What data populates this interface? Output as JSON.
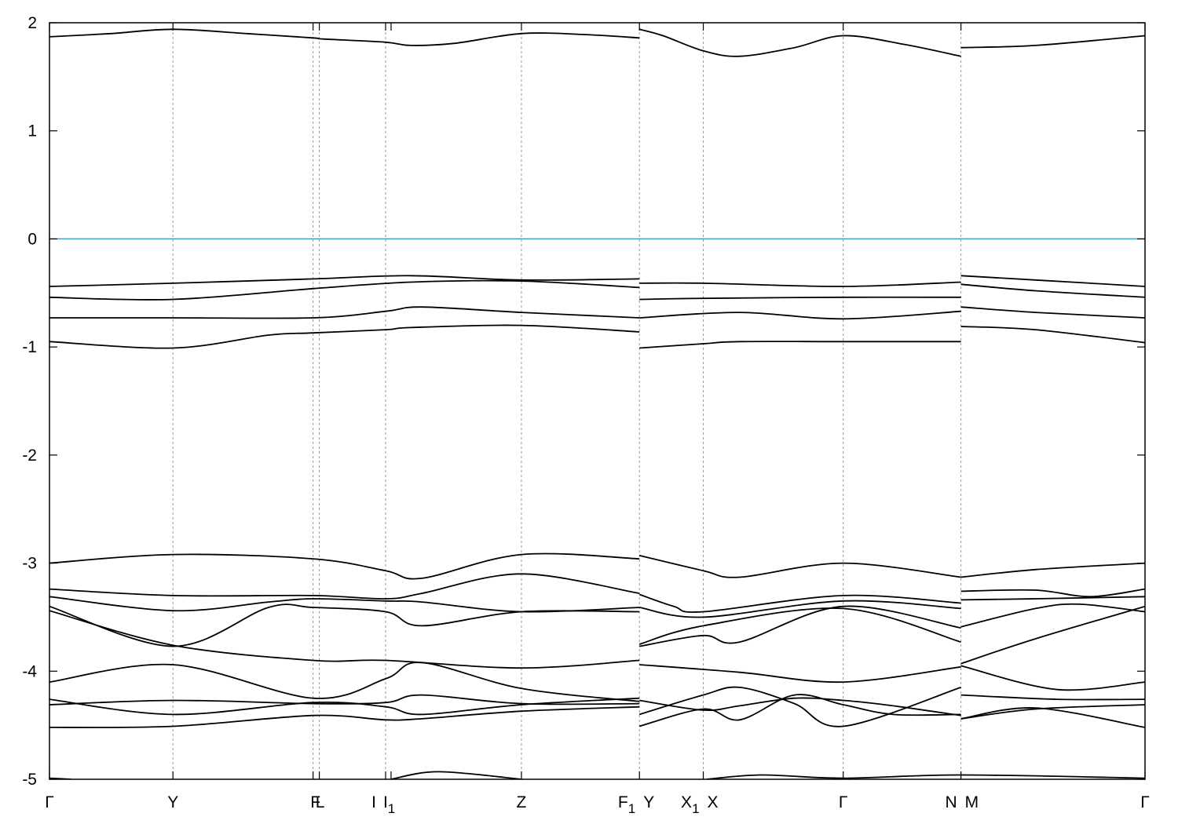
{
  "chart_data": {
    "type": "line",
    "title": "",
    "xlabel": "",
    "ylabel": "",
    "ylim": [
      -5,
      2
    ],
    "xlim": [
      0,
      1
    ],
    "yticks": [
      -5,
      -4,
      -3,
      -2,
      -1,
      0,
      1,
      2
    ],
    "ytick_labels": [
      "-5",
      "-4",
      "-3",
      "-2",
      "-1",
      "0",
      "1",
      "2"
    ],
    "fermi_level": 0,
    "fermi_color": "#40a0c0",
    "band_color": "#000000",
    "grid": "vertical dashed at high-symmetry points",
    "kpoints": [
      {
        "x": 0.0,
        "label": "Γ",
        "sub": ""
      },
      {
        "x": 0.1127,
        "label": "Y",
        "sub": ""
      },
      {
        "x": 0.2406,
        "label": "F",
        "sub": ""
      },
      {
        "x": 0.2463,
        "label": "L",
        "sub": ""
      },
      {
        "x": 0.3068,
        "label": "I",
        "sub": ""
      },
      {
        "x": 0.3118,
        "label": "I",
        "sub": "1"
      },
      {
        "x": 0.4308,
        "label": "Z",
        "sub": ""
      },
      {
        "x": 0.5385,
        "label": "F",
        "sub": "1"
      },
      {
        "x": 0.5385,
        "label": "Y",
        "sub": ""
      },
      {
        "x": 0.5968,
        "label": "X",
        "sub": "1"
      },
      {
        "x": 0.5968,
        "label": "X",
        "sub": ""
      },
      {
        "x": 0.7245,
        "label": "Γ",
        "sub": ""
      },
      {
        "x": 0.832,
        "label": "N",
        "sub": ""
      },
      {
        "x": 0.832,
        "label": "M",
        "sub": ""
      },
      {
        "x": 1.0,
        "label": "Γ",
        "sub": ""
      }
    ],
    "grid_x": [
      0.1127,
      0.2406,
      0.2463,
      0.3068,
      0.4308,
      0.5385,
      0.5968,
      0.7245,
      0.832
    ],
    "series": [
      {
        "segments": [
          [
            [
              0,
              1.87
            ],
            [
              0.056,
              1.9
            ],
            [
              0.1127,
              1.94
            ],
            [
              0.18,
              1.9
            ],
            [
              0.2406,
              1.86
            ],
            [
              0.25,
              1.85
            ],
            [
              0.3068,
              1.82
            ],
            [
              0.33,
              1.79
            ],
            [
              0.37,
              1.81
            ],
            [
              0.4308,
              1.9
            ],
            [
              0.49,
              1.89
            ],
            [
              0.5385,
              1.86
            ]
          ],
          [
            [
              0.5385,
              1.94
            ],
            [
              0.56,
              1.88
            ],
            [
              0.5968,
              1.74
            ],
            [
              0.63,
              1.69
            ],
            [
              0.68,
              1.77
            ],
            [
              0.7245,
              1.88
            ],
            [
              0.78,
              1.8
            ],
            [
              0.832,
              1.69
            ]
          ],
          [
            [
              0.832,
              1.77
            ],
            [
              0.9,
              1.79
            ],
            [
              1.0,
              1.88
            ]
          ]
        ]
      },
      {
        "segments": [
          [
            [
              0,
              -0.44
            ],
            [
              0.1127,
              -0.41
            ],
            [
              0.2406,
              -0.37
            ],
            [
              0.33,
              -0.34
            ],
            [
              0.4308,
              -0.38
            ],
            [
              0.5385,
              -0.37
            ]
          ],
          [
            [
              0.5385,
              -0.41
            ],
            [
              0.5968,
              -0.41
            ],
            [
              0.7245,
              -0.44
            ],
            [
              0.832,
              -0.4
            ]
          ],
          [
            [
              0.832,
              -0.34
            ],
            [
              0.9,
              -0.38
            ],
            [
              1.0,
              -0.44
            ]
          ]
        ]
      },
      {
        "segments": [
          [
            [
              0,
              -0.54
            ],
            [
              0.1127,
              -0.56
            ],
            [
              0.2406,
              -0.46
            ],
            [
              0.33,
              -0.4
            ],
            [
              0.4308,
              -0.39
            ],
            [
              0.5385,
              -0.45
            ]
          ],
          [
            [
              0.5385,
              -0.56
            ],
            [
              0.5968,
              -0.55
            ],
            [
              0.7245,
              -0.54
            ],
            [
              0.832,
              -0.54
            ]
          ],
          [
            [
              0.832,
              -0.42
            ],
            [
              0.9,
              -0.48
            ],
            [
              1.0,
              -0.54
            ]
          ]
        ]
      },
      {
        "segments": [
          [
            [
              0,
              -0.73
            ],
            [
              0.1127,
              -0.73
            ],
            [
              0.2406,
              -0.73
            ],
            [
              0.3068,
              -0.67
            ],
            [
              0.34,
              -0.63
            ],
            [
              0.4308,
              -0.68
            ],
            [
              0.5385,
              -0.73
            ]
          ],
          [
            [
              0.5385,
              -0.73
            ],
            [
              0.63,
              -0.68
            ],
            [
              0.7245,
              -0.74
            ],
            [
              0.832,
              -0.67
            ]
          ],
          [
            [
              0.832,
              -0.63
            ],
            [
              0.9,
              -0.68
            ],
            [
              1.0,
              -0.73
            ]
          ]
        ]
      },
      {
        "segments": [
          [
            [
              0,
              -0.95
            ],
            [
              0.1127,
              -1.01
            ],
            [
              0.2,
              -0.89
            ],
            [
              0.2406,
              -0.87
            ],
            [
              0.3068,
              -0.84
            ],
            [
              0.33,
              -0.82
            ],
            [
              0.4308,
              -0.8
            ],
            [
              0.5385,
              -0.86
            ]
          ],
          [
            [
              0.5385,
              -1.01
            ],
            [
              0.5968,
              -0.97
            ],
            [
              0.63,
              -0.95
            ],
            [
              0.7245,
              -0.95
            ],
            [
              0.832,
              -0.95
            ]
          ],
          [
            [
              0.832,
              -0.81
            ],
            [
              0.9,
              -0.84
            ],
            [
              1.0,
              -0.96
            ]
          ]
        ]
      },
      {
        "segments": [
          [
            [
              0,
              -3.0
            ],
            [
              0.1127,
              -2.92
            ],
            [
              0.2406,
              -2.96
            ],
            [
              0.3068,
              -3.07
            ],
            [
              0.34,
              -3.14
            ],
            [
              0.4308,
              -2.92
            ],
            [
              0.5385,
              -2.96
            ]
          ],
          [
            [
              0.5385,
              -2.93
            ],
            [
              0.5968,
              -3.07
            ],
            [
              0.63,
              -3.13
            ],
            [
              0.7245,
              -3.0
            ],
            [
              0.832,
              -3.13
            ]
          ],
          [
            [
              0.832,
              -3.13
            ],
            [
              0.9,
              -3.06
            ],
            [
              1.0,
              -3.0
            ]
          ]
        ]
      },
      {
        "segments": [
          [
            [
              0,
              -3.24
            ],
            [
              0.1127,
              -3.3
            ],
            [
              0.2406,
              -3.3
            ],
            [
              0.3068,
              -3.33
            ],
            [
              0.34,
              -3.28
            ],
            [
              0.4308,
              -3.1
            ],
            [
              0.5385,
              -3.28
            ]
          ],
          [
            [
              0.5385,
              -3.29
            ],
            [
              0.57,
              -3.4
            ],
            [
              0.5968,
              -3.45
            ],
            [
              0.7245,
              -3.3
            ],
            [
              0.832,
              -3.37
            ]
          ],
          [
            [
              0.832,
              -3.26
            ],
            [
              0.9,
              -3.25
            ],
            [
              0.95,
              -3.31
            ],
            [
              1.0,
              -3.24
            ]
          ]
        ]
      },
      {
        "segments": [
          [
            [
              0,
              -3.31
            ],
            [
              0.1127,
              -3.44
            ],
            [
              0.2,
              -3.36
            ],
            [
              0.2406,
              -3.33
            ],
            [
              0.3068,
              -3.35
            ],
            [
              0.34,
              -3.36
            ],
            [
              0.4308,
              -3.45
            ],
            [
              0.5385,
              -3.41
            ]
          ],
          [
            [
              0.5385,
              -3.41
            ],
            [
              0.5968,
              -3.5
            ],
            [
              0.7245,
              -3.35
            ],
            [
              0.832,
              -3.42
            ]
          ],
          [
            [
              0.832,
              -3.34
            ],
            [
              0.9,
              -3.33
            ],
            [
              1.0,
              -3.31
            ]
          ]
        ]
      },
      {
        "segments": [
          [
            [
              0,
              -3.4
            ],
            [
              0.1127,
              -3.77
            ],
            [
              0.2,
              -3.41
            ],
            [
              0.2406,
              -3.41
            ],
            [
              0.3068,
              -3.45
            ],
            [
              0.34,
              -3.58
            ],
            [
              0.4308,
              -3.45
            ],
            [
              0.5385,
              -3.45
            ]
          ],
          [
            [
              0.5385,
              -3.77
            ],
            [
              0.5968,
              -3.67
            ],
            [
              0.63,
              -3.73
            ],
            [
              0.7245,
              -3.4
            ],
            [
              0.832,
              -3.6
            ]
          ],
          [
            [
              0.832,
              -3.59
            ],
            [
              0.9,
              -3.42
            ],
            [
              0.94,
              -3.38
            ],
            [
              1.0,
              -3.45
            ]
          ]
        ]
      },
      {
        "segments": [
          [
            [
              0,
              -3.44
            ],
            [
              0.1127,
              -3.76
            ],
            [
              0.2406,
              -3.9
            ],
            [
              0.3068,
              -3.9
            ],
            [
              0.4308,
              -3.97
            ],
            [
              0.5385,
              -3.9
            ]
          ],
          [
            [
              0.5385,
              -3.75
            ],
            [
              0.5968,
              -3.58
            ],
            [
              0.7245,
              -3.42
            ],
            [
              0.832,
              -3.73
            ]
          ],
          [
            [
              0.832,
              -3.93
            ],
            [
              0.9,
              -3.7
            ],
            [
              1.0,
              -3.4
            ]
          ]
        ]
      },
      {
        "segments": [
          [
            [
              0,
              -4.1
            ],
            [
              0.1127,
              -3.94
            ],
            [
              0.2406,
              -4.25
            ],
            [
              0.3068,
              -4.07
            ],
            [
              0.34,
              -3.92
            ],
            [
              0.4308,
              -4.16
            ],
            [
              0.5385,
              -4.28
            ]
          ],
          [
            [
              0.5385,
              -3.94
            ],
            [
              0.63,
              -4.01
            ],
            [
              0.7245,
              -4.1
            ],
            [
              0.832,
              -3.96
            ]
          ],
          [
            [
              0.832,
              -3.95
            ],
            [
              0.92,
              -4.17
            ],
            [
              1.0,
              -4.1
            ]
          ]
        ]
      },
      {
        "segments": [
          [
            [
              0,
              -4.26
            ],
            [
              0.1127,
              -4.4
            ],
            [
              0.2406,
              -4.29
            ],
            [
              0.3068,
              -4.33
            ],
            [
              0.34,
              -4.4
            ],
            [
              0.4308,
              -4.31
            ],
            [
              0.5385,
              -4.25
            ]
          ],
          [
            [
              0.5385,
              -4.4
            ],
            [
              0.5968,
              -4.22
            ],
            [
              0.63,
              -4.15
            ],
            [
              0.68,
              -4.3
            ],
            [
              0.7245,
              -4.51
            ],
            [
              0.832,
              -4.15
            ]
          ],
          [
            [
              0.832,
              -4.22
            ],
            [
              0.92,
              -4.26
            ],
            [
              1.0,
              -4.26
            ]
          ]
        ]
      },
      {
        "segments": [
          [
            [
              0,
              -4.31
            ],
            [
              0.1127,
              -4.27
            ],
            [
              0.2406,
              -4.3
            ],
            [
              0.3068,
              -4.29
            ],
            [
              0.34,
              -4.22
            ],
            [
              0.4308,
              -4.3
            ],
            [
              0.5385,
              -4.3
            ]
          ],
          [
            [
              0.5385,
              -4.27
            ],
            [
              0.5968,
              -4.36
            ],
            [
              0.63,
              -4.32
            ],
            [
              0.68,
              -4.25
            ],
            [
              0.7245,
              -4.27
            ],
            [
              0.77,
              -4.32
            ],
            [
              0.832,
              -4.41
            ]
          ],
          [
            [
              0.832,
              -4.44
            ],
            [
              0.9,
              -4.35
            ],
            [
              1.0,
              -4.31
            ]
          ]
        ]
      },
      {
        "segments": [
          [
            [
              0,
              -4.52
            ],
            [
              0.1127,
              -4.51
            ],
            [
              0.2406,
              -4.41
            ],
            [
              0.3068,
              -4.45
            ],
            [
              0.34,
              -4.44
            ],
            [
              0.4308,
              -4.37
            ],
            [
              0.5385,
              -4.33
            ]
          ],
          [
            [
              0.5385,
              -4.51
            ],
            [
              0.5968,
              -4.35
            ],
            [
              0.63,
              -4.45
            ],
            [
              0.68,
              -4.22
            ],
            [
              0.7245,
              -4.31
            ],
            [
              0.77,
              -4.4
            ],
            [
              0.832,
              -4.4
            ]
          ],
          [
            [
              0.832,
              -4.44
            ],
            [
              0.9,
              -4.34
            ],
            [
              1.0,
              -4.52
            ]
          ]
        ]
      },
      {
        "segments": [
          [
            [
              0,
              -4.99
            ],
            [
              0.02,
              -5.0
            ]
          ],
          [
            [
              0.3118,
              -5.0
            ],
            [
              0.355,
              -4.93
            ],
            [
              0.4308,
              -5.0
            ]
          ],
          [
            [
              0.6,
              -5.0
            ],
            [
              0.65,
              -4.96
            ],
            [
              0.7245,
              -4.99
            ],
            [
              0.832,
              -4.96
            ],
            [
              1.0,
              -4.99
            ]
          ]
        ]
      }
    ]
  }
}
